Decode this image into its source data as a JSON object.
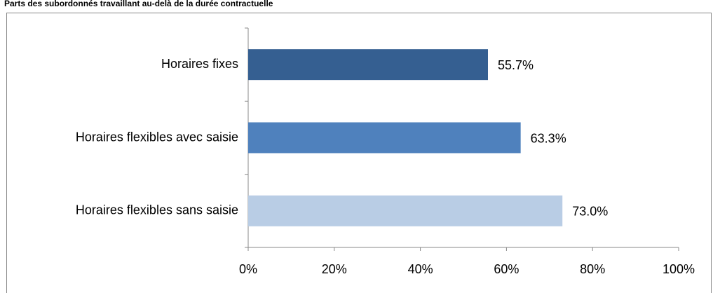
{
  "chart_data": {
    "type": "bar",
    "orientation": "horizontal",
    "title": "Parts des subordonnés travaillant au-delà de la durée contractuelle",
    "categories": [
      "Horaires fixes",
      "Horaires flexibles avec saisie",
      "Horaires flexibles sans saisie"
    ],
    "values": [
      55.7,
      63.3,
      73.0
    ],
    "value_labels": [
      "55.7%",
      "63.3%",
      "73.0%"
    ],
    "colors": [
      "#355f91",
      "#4f81bd",
      "#b9cde5"
    ],
    "xlim": [
      0,
      100
    ],
    "xticks": [
      {
        "value": 0,
        "label": "0%"
      },
      {
        "value": 20,
        "label": "20%"
      },
      {
        "value": 40,
        "label": "40%"
      },
      {
        "value": 60,
        "label": "60%"
      },
      {
        "value": 80,
        "label": "80%"
      },
      {
        "value": 100,
        "label": "100%"
      }
    ],
    "grid": false
  }
}
